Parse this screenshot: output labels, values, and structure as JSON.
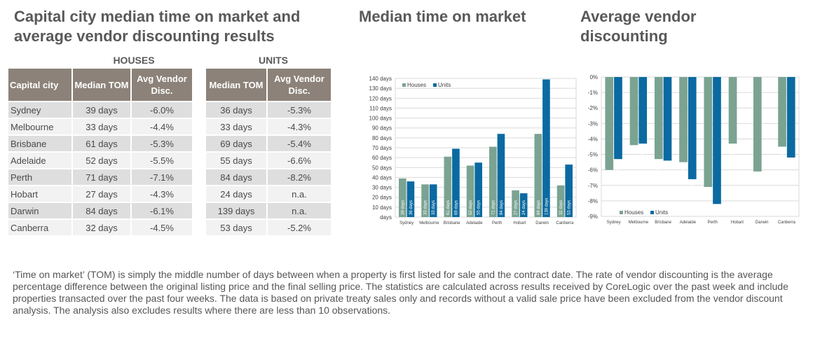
{
  "page": {
    "title_line1": "Capital city median time on market and",
    "title_line2": "average vendor discounting results",
    "chart1_title": "Median time on market",
    "chart2_title_line1": "Average vendor",
    "chart2_title_line2": "discounting",
    "footnote": "‘Time on market’ (TOM) is simply the middle number of days between when a property is first listed for sale and the contract date.  The rate of vendor discounting is the average percentage difference between the original listing price and the final selling price.  The statistics are calculated across results received by CoreLogic over the past week and include properties transacted over the past four weeks. The data is based on private treaty sales only and records without a valid sale price have been excluded from the vendor discount analysis. The analysis also excludes results where there are less than 10 observations."
  },
  "table": {
    "group_houses": "HOUSES",
    "group_units": "UNITS",
    "col_city": "Capital city",
    "col_tom": "Median TOM",
    "col_disc": "Avg Vendor Disc.",
    "rows": [
      {
        "city": "Sydney",
        "h_tom": "39 days",
        "h_disc": "-6.0%",
        "u_tom": "36 days",
        "u_disc": "-5.3%"
      },
      {
        "city": "Melbourne",
        "h_tom": "33 days",
        "h_disc": "-4.4%",
        "u_tom": "33 days",
        "u_disc": "-4.3%"
      },
      {
        "city": "Brisbane",
        "h_tom": "61 days",
        "h_disc": "-5.3%",
        "u_tom": "69 days",
        "u_disc": "-5.4%"
      },
      {
        "city": "Adelaide",
        "h_tom": "52 days",
        "h_disc": "-5.5%",
        "u_tom": "55 days",
        "u_disc": "-6.6%"
      },
      {
        "city": "Perth",
        "h_tom": "71 days",
        "h_disc": "-7.1%",
        "u_tom": "84 days",
        "u_disc": "-8.2%"
      },
      {
        "city": "Hobart",
        "h_tom": "27 days",
        "h_disc": "-4.3%",
        "u_tom": "24 days",
        "u_disc": "n.a."
      },
      {
        "city": "Darwin",
        "h_tom": "84 days",
        "h_disc": "-6.1%",
        "u_tom": "139 days",
        "u_disc": "n.a."
      },
      {
        "city": "Canberra",
        "h_tom": "32 days",
        "h_disc": "-4.5%",
        "u_tom": "53 days",
        "u_disc": "-5.2%"
      }
    ]
  },
  "chart_data": [
    {
      "type": "bar",
      "title": "Median time on market",
      "categories": [
        "Sydney",
        "Melbourne",
        "Brisbane",
        "Adelaide",
        "Perth",
        "Hobart",
        "Darwin",
        "Canberra"
      ],
      "series": [
        {
          "name": "Houses",
          "color": "#7aa392",
          "values": [
            39,
            33,
            61,
            52,
            71,
            27,
            84,
            32
          ],
          "labels": [
            "39 days",
            "33 days",
            "61 days",
            "52 days",
            "71 days",
            "27 days",
            "84 days",
            "32 days"
          ]
        },
        {
          "name": "Units",
          "color": "#0a6aa1",
          "values": [
            36,
            33,
            69,
            55,
            84,
            24,
            139,
            53
          ],
          "labels": [
            "36 days",
            "33 days",
            "69 days",
            "55 days",
            "84 days",
            "24 days",
            "139 days",
            "53 days"
          ]
        }
      ],
      "ylim": [
        0,
        140
      ],
      "yticks": [
        "days",
        "10 days",
        "20 days",
        "30 days",
        "40 days",
        "50 days",
        "60 days",
        "70 days",
        "80 days",
        "90 days",
        "100 days",
        "110 days",
        "120 days",
        "130 days",
        "140 days"
      ],
      "grid": true,
      "legend": "top-left"
    },
    {
      "type": "bar",
      "title": "Average vendor discounting",
      "categories": [
        "Sydney",
        "Melbourne",
        "Brisbane",
        "Adelaide",
        "Perth",
        "Hobart",
        "Darwin",
        "Canberra"
      ],
      "series": [
        {
          "name": "Houses",
          "color": "#7aa392",
          "values": [
            -6.0,
            -4.4,
            -5.3,
            -5.5,
            -7.1,
            -4.3,
            -6.1,
            -4.5
          ],
          "labels": [
            "-6.0%",
            "-4.4%",
            "-5.3%",
            "-5.5%",
            "-7.1%",
            "-4.3%",
            "-6.1%",
            "-4.5%"
          ]
        },
        {
          "name": "Units",
          "color": "#0a6aa1",
          "values": [
            -5.3,
            -4.3,
            -5.4,
            -6.6,
            -8.2,
            null,
            null,
            -5.2
          ],
          "labels": [
            "-5.3%",
            "-4.3%",
            "-5.4%",
            "-6.6%",
            "-8.2%",
            "",
            "",
            "-5.2%"
          ]
        }
      ],
      "ylim": [
        -9,
        0
      ],
      "yticks": [
        "0%",
        "-1%",
        "-2%",
        "-3%",
        "-4%",
        "-5%",
        "-6%",
        "-7%",
        "-8%",
        "-9%"
      ],
      "grid": true,
      "legend": "bottom-left"
    }
  ]
}
